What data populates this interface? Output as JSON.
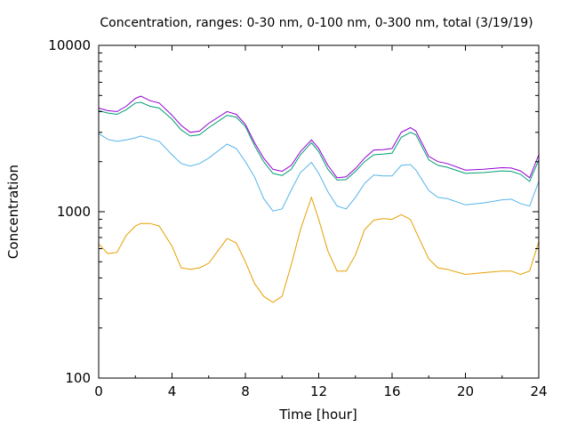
{
  "chart_data": {
    "type": "line",
    "title": "Concentration, ranges: 0-30 nm, 0-100 nm, 0-300 nm, total (3/19/19)",
    "xlabel": "Time [hour]",
    "ylabel": "Concentration",
    "xlim": [
      0,
      24
    ],
    "ylim": [
      100,
      10000
    ],
    "yscale": "log",
    "x_ticks": [
      "0",
      "4",
      "8",
      "12",
      "16",
      "20",
      "24"
    ],
    "y_ticks": [
      "100",
      "1000",
      "10000"
    ],
    "grid": false,
    "legend": "none",
    "x": [
      0,
      0.5,
      1,
      1.5,
      2,
      2.3,
      2.8,
      3.3,
      4,
      4.5,
      5,
      5.5,
      6,
      7,
      7.5,
      8,
      8.5,
      9,
      9.5,
      10,
      10.5,
      11,
      11.6,
      12,
      12.5,
      13,
      13.5,
      14,
      14.5,
      15,
      15.5,
      16,
      16.5,
      17,
      17.3,
      18,
      18.5,
      19,
      20,
      21,
      22,
      22.5,
      23,
      23.5,
      24
    ],
    "series": [
      {
        "color": "#e69f00",
        "values": [
          640,
          560,
          570,
          720,
          820,
          850,
          850,
          820,
          620,
          460,
          450,
          460,
          490,
          690,
          650,
          500,
          370,
          310,
          285,
          310,
          480,
          780,
          1220,
          900,
          580,
          440,
          440,
          550,
          780,
          890,
          910,
          900,
          960,
          900,
          760,
          520,
          460,
          450,
          420,
          430,
          440,
          440,
          420,
          440,
          660
        ]
      },
      {
        "color": "#56b4e9",
        "values": [
          2950,
          2720,
          2650,
          2700,
          2780,
          2850,
          2750,
          2650,
          2200,
          1950,
          1880,
          1950,
          2100,
          2550,
          2400,
          2000,
          1620,
          1200,
          1010,
          1040,
          1350,
          1720,
          1980,
          1700,
          1320,
          1080,
          1040,
          1220,
          1480,
          1660,
          1640,
          1640,
          1900,
          1920,
          1780,
          1340,
          1220,
          1200,
          1100,
          1130,
          1180,
          1190,
          1120,
          1080,
          1520
        ]
      },
      {
        "color": "#009e73",
        "values": [
          4050,
          3920,
          3850,
          4100,
          4500,
          4550,
          4300,
          4200,
          3600,
          3100,
          2850,
          2900,
          3200,
          3800,
          3700,
          3250,
          2500,
          2000,
          1700,
          1650,
          1800,
          2200,
          2600,
          2300,
          1800,
          1550,
          1560,
          1750,
          2000,
          2200,
          2220,
          2250,
          2800,
          3000,
          2900,
          2050,
          1900,
          1850,
          1700,
          1720,
          1760,
          1750,
          1680,
          1520,
          2050
        ]
      },
      {
        "color": "#9400d3",
        "values": [
          4200,
          4050,
          4000,
          4300,
          4800,
          4950,
          4650,
          4500,
          3800,
          3300,
          3000,
          3050,
          3400,
          4000,
          3850,
          3350,
          2600,
          2100,
          1800,
          1750,
          1900,
          2300,
          2700,
          2400,
          1900,
          1600,
          1620,
          1820,
          2100,
          2350,
          2360,
          2400,
          3000,
          3200,
          3050,
          2150,
          2000,
          1950,
          1780,
          1800,
          1840,
          1830,
          1760,
          1600,
          2200
        ]
      }
    ]
  }
}
